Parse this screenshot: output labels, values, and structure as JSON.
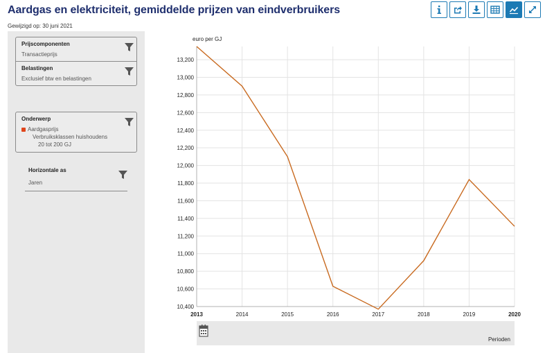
{
  "header": {
    "title": "Aardgas en elektriciteit, gemiddelde prijzen van eindverbruikers",
    "updated": "Gewijzigd op: 30 juni 2021"
  },
  "toolbar": {
    "buttons": [
      {
        "icon": "info-icon"
      },
      {
        "icon": "share-icon"
      },
      {
        "icon": "download-icon"
      },
      {
        "icon": "table-icon"
      },
      {
        "icon": "line-chart-icon",
        "active": true
      },
      {
        "icon": "fullscreen-icon"
      }
    ],
    "accent": "#1c7ab4"
  },
  "filters": {
    "prijscomponenten": {
      "label": "Prijscomponenten",
      "value": "Transactieprijs"
    },
    "belastingen": {
      "label": "Belastingen",
      "value": "Exclusief btw en belastingen"
    },
    "onderwerp": {
      "label": "Onderwerp",
      "value": "Aardgasprijs",
      "sub1": "Verbruiksklassen huishoudens",
      "sub2": "20 tot 200 GJ",
      "series_color": "#e0461c"
    },
    "horizontale_as": {
      "label": "Horizontale as",
      "value": "Jaren"
    }
  },
  "chart_data": {
    "type": "line",
    "ylabel": "euro per GJ",
    "xlabel": "Perioden",
    "x": [
      "2013",
      "2014",
      "2015",
      "2016",
      "2017",
      "2018",
      "2019",
      "2020"
    ],
    "x_bold": [
      "2013",
      "2020"
    ],
    "series": [
      {
        "values": [
          13.35,
          12.9,
          12.1,
          10.63,
          10.37,
          10.92,
          11.84,
          11.31
        ],
        "color": "#c8691e"
      }
    ],
    "ylim": [
      10.4,
      13.35
    ],
    "yticks": [
      10.4,
      10.6,
      10.8,
      11.0,
      11.2,
      11.4,
      11.6,
      11.8,
      12.0,
      12.2,
      12.4,
      12.6,
      12.8,
      13.0,
      13.2
    ],
    "ytick_labels": [
      "10,400",
      "10,600",
      "10,800",
      "11,000",
      "11,200",
      "11,400",
      "11,600",
      "11,800",
      "12,000",
      "12,200",
      "12,400",
      "12,600",
      "12,800",
      "13,000",
      "13,200"
    ],
    "grid": true
  }
}
